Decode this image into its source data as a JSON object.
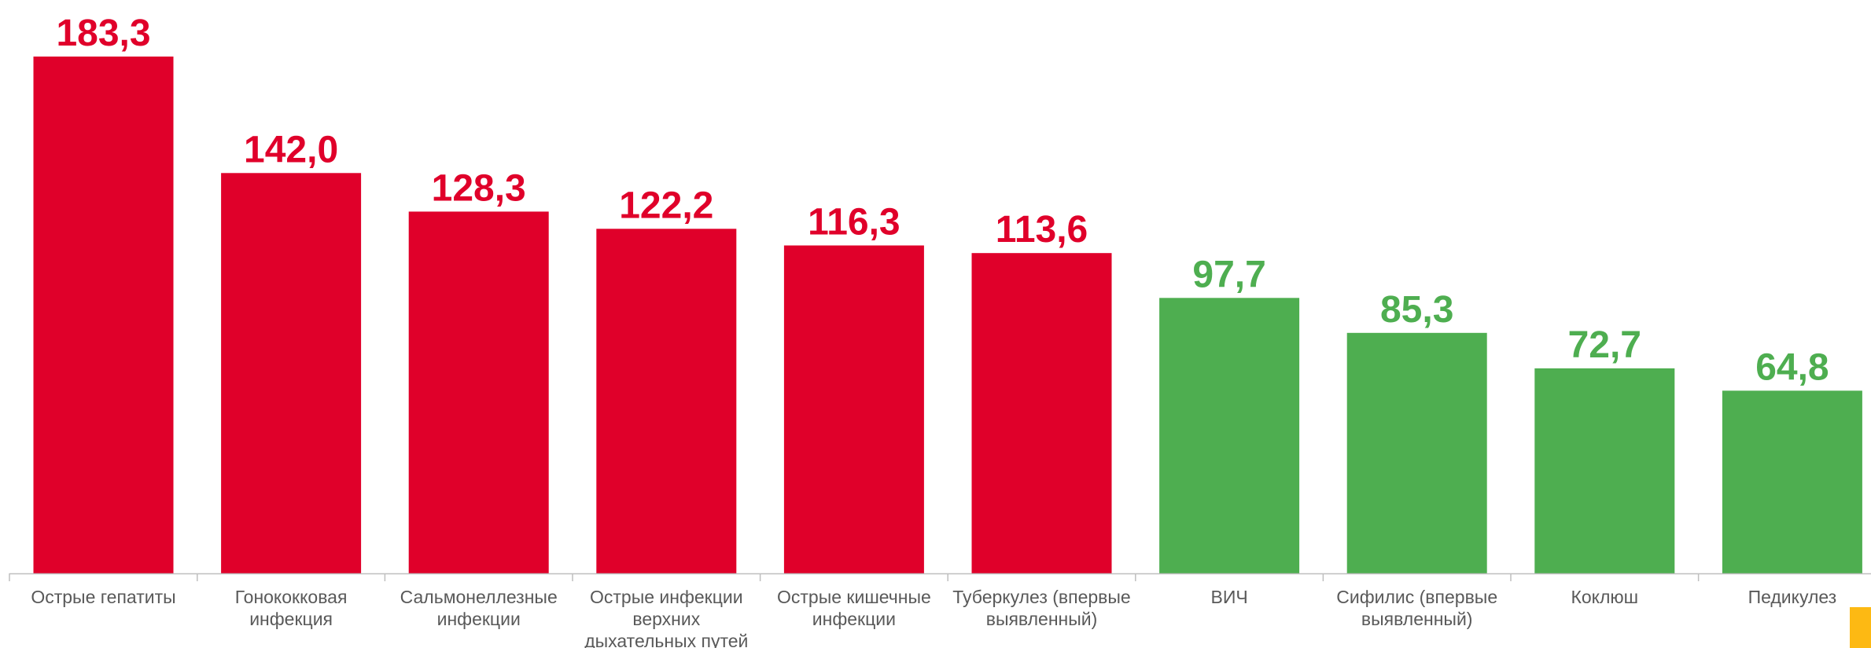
{
  "colors": {
    "increase": "#E0002A",
    "decrease": "#4EAE50",
    "axis": "#BFBFBF",
    "category_text": "#595959",
    "corner_accent": "#FDB913"
  },
  "chart_data": {
    "type": "bar",
    "title": "",
    "xlabel": "",
    "ylabel": "",
    "grid": false,
    "legend": "none",
    "ylim": [
      0,
      190
    ],
    "categories": [
      [
        "Острые гепатиты"
      ],
      [
        "Гонококковая",
        "инфекция"
      ],
      [
        "Сальмонеллезные",
        "инфекции"
      ],
      [
        "Острые инфекции",
        "верхних",
        "дыхательных путей"
      ],
      [
        "Острые кишечные",
        "инфекции"
      ],
      [
        "Туберкулез (впервые",
        "выявленный)"
      ],
      [
        "ВИЧ"
      ],
      [
        "Сифилис (впервые",
        "выявленный)"
      ],
      [
        "Коклюш"
      ],
      [
        "Педикулез"
      ]
    ],
    "values": [
      183.3,
      142.0,
      128.3,
      122.2,
      116.3,
      113.6,
      97.7,
      85.3,
      72.7,
      64.8
    ],
    "value_labels": [
      "183,3",
      "142,0",
      "128,3",
      "122,2",
      "116,3",
      "113,6",
      "97,7",
      "85,3",
      "72,7",
      "64,8"
    ],
    "bar_colors": [
      "#E0002A",
      "#E0002A",
      "#E0002A",
      "#E0002A",
      "#E0002A",
      "#E0002A",
      "#4EAE50",
      "#4EAE50",
      "#4EAE50",
      "#4EAE50"
    ]
  }
}
